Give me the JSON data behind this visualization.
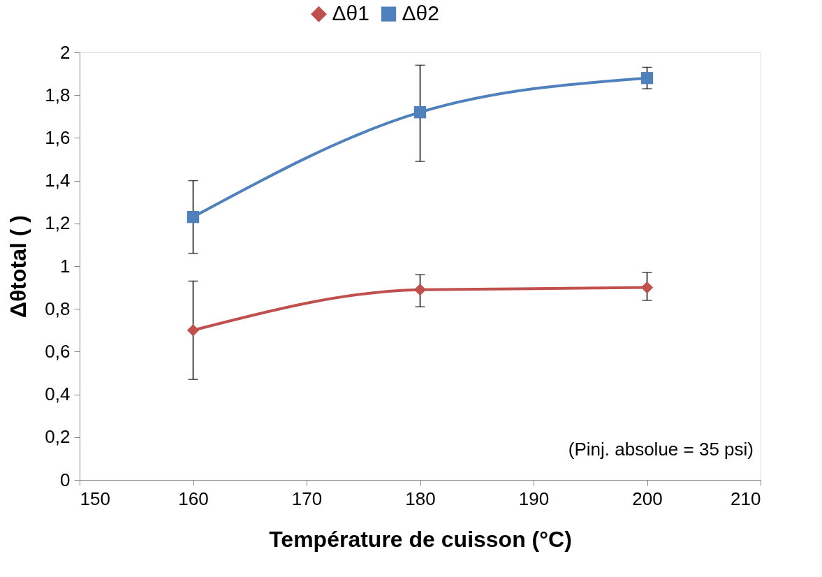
{
  "chart_data": {
    "type": "line",
    "xlabel": "Température de cuisson (°C)",
    "ylabel": "Δθtotal ( )",
    "x": [
      160,
      180,
      200
    ],
    "series": [
      {
        "name": "Δθ1",
        "color": "#c0504d",
        "marker": "diamond",
        "values": [
          0.7,
          0.89,
          0.9
        ],
        "errors": [
          [
            0.47,
            0.93
          ],
          [
            0.81,
            0.96
          ],
          [
            0.84,
            0.97
          ]
        ]
      },
      {
        "name": "Δθ2",
        "color": "#4f81bd",
        "marker": "square",
        "values": [
          1.23,
          1.72,
          1.88
        ],
        "errors": [
          [
            1.06,
            1.4
          ],
          [
            1.49,
            1.94
          ],
          [
            1.83,
            1.93
          ]
        ]
      }
    ],
    "xlim": [
      150,
      210
    ],
    "xticks": [
      150,
      160,
      170,
      180,
      190,
      200,
      210
    ],
    "ylim": [
      0,
      2
    ],
    "yticks": [
      0,
      {
        "value": 0.2,
        "label": "0,2"
      },
      {
        "value": 0.4,
        "label": "0,4"
      },
      {
        "value": 0.6,
        "label": "0,6"
      },
      {
        "value": 0.8,
        "label": "0,8"
      },
      1,
      {
        "value": 1.2,
        "label": "1,2"
      },
      {
        "value": 1.4,
        "label": "1,4"
      },
      {
        "value": 1.6,
        "label": "1,6"
      },
      {
        "value": 1.8,
        "label": "1,8"
      },
      2
    ],
    "annotations": [
      "(Pinj. absolue = 35 psi)"
    ],
    "legend": "top",
    "grid": false,
    "line_style": "solid"
  }
}
